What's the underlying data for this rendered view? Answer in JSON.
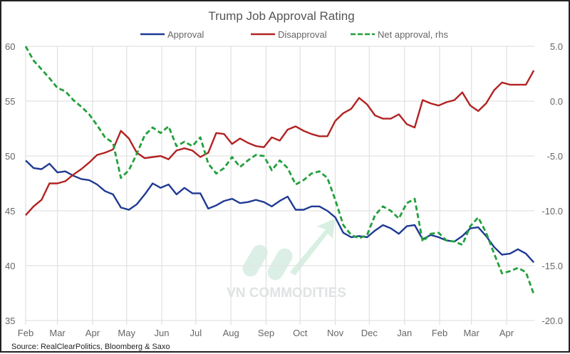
{
  "chart_data": {
    "type": "line",
    "title": "Trump Job Approval Rating",
    "source": "Source: RealClearPolitics, Bloomberg & Saxo",
    "watermark": "VN COMMODITIES",
    "legend_position": "top",
    "grid": true,
    "x_ticks": [
      {
        "date": "2025-02-01",
        "label": "Feb"
      },
      {
        "date": "2025-03-01",
        "label": "Mar"
      },
      {
        "date": "2025-04-01",
        "label": "Apr"
      },
      {
        "date": "2025-05-01",
        "label": "May"
      },
      {
        "date": "2025-06-01",
        "label": "Jun"
      },
      {
        "date": "2025-07-01",
        "label": "Jul"
      },
      {
        "date": "2025-08-01",
        "label": "Aug"
      },
      {
        "date": "2025-09-01",
        "label": "Sep"
      },
      {
        "date": "2025-10-01",
        "label": "Oct"
      },
      {
        "date": "2025-11-01",
        "label": "Nov"
      },
      {
        "date": "2025-12-01",
        "label": "Dec"
      },
      {
        "date": "2026-01-01",
        "label": "Jan"
      },
      {
        "date": "2026-02-01",
        "label": "Feb"
      },
      {
        "date": "2026-03-01",
        "label": "Mar"
      },
      {
        "date": "2026-04-01",
        "label": "Apr"
      }
    ],
    "y_left": {
      "range": [
        35,
        60
      ],
      "ticks": [
        "35",
        "40",
        "45",
        "50",
        "55",
        "60"
      ]
    },
    "y_right": {
      "range": [
        -20,
        5
      ],
      "ticks": [
        "-20.0",
        "-15.0",
        "-10.0",
        "-5.0",
        "0.0",
        "5.0"
      ]
    },
    "x": [
      "2025-02-01",
      "2025-02-08",
      "2025-02-15",
      "2025-02-22",
      "2025-03-01",
      "2025-03-08",
      "2025-03-15",
      "2025-03-22",
      "2025-03-29",
      "2025-04-05",
      "2025-04-12",
      "2025-04-19",
      "2025-04-26",
      "2025-05-03",
      "2025-05-10",
      "2025-05-17",
      "2025-05-24",
      "2025-05-31",
      "2025-06-07",
      "2025-06-14",
      "2025-06-21",
      "2025-06-28",
      "2025-07-05",
      "2025-07-12",
      "2025-07-19",
      "2025-07-26",
      "2025-08-02",
      "2025-08-09",
      "2025-08-16",
      "2025-08-23",
      "2025-08-30",
      "2025-09-06",
      "2025-09-13",
      "2025-09-20",
      "2025-09-27",
      "2025-10-04",
      "2025-10-11",
      "2025-10-18",
      "2025-10-25",
      "2025-11-01",
      "2025-11-08",
      "2025-11-15",
      "2025-11-22",
      "2025-11-29",
      "2025-12-06",
      "2025-12-13",
      "2025-12-20",
      "2025-12-27",
      "2026-01-03",
      "2026-01-10",
      "2026-01-17",
      "2026-01-24",
      "2026-01-31",
      "2026-02-07",
      "2026-02-14",
      "2026-02-21",
      "2026-02-28",
      "2026-03-07",
      "2026-03-14",
      "2026-03-21",
      "2026-03-28",
      "2026-04-04",
      "2026-04-11",
      "2026-04-18",
      "2026-04-25"
    ],
    "series": [
      {
        "name": "Approval",
        "axis": "left",
        "color": "#1f3a93",
        "dash": false,
        "values": [
          49.6,
          48.9,
          48.8,
          49.3,
          48.5,
          48.6,
          48.2,
          47.9,
          47.8,
          47.4,
          46.8,
          46.5,
          45.3,
          45.1,
          45.6,
          46.5,
          47.5,
          47.1,
          47.4,
          46.5,
          47.1,
          46.6,
          46.6,
          45.2,
          45.5,
          45.9,
          46.1,
          45.7,
          45.8,
          46.0,
          45.8,
          45.4,
          45.9,
          46.3,
          45.1,
          45.1,
          45.4,
          45.4,
          45.0,
          44.4,
          43.0,
          42.6,
          42.7,
          42.6,
          43.2,
          43.7,
          43.4,
          42.9,
          43.6,
          43.7,
          42.4,
          42.8,
          42.6,
          42.3,
          42.2,
          42.7,
          43.4,
          43.5,
          42.7,
          41.7,
          41.0,
          41.1,
          41.5,
          41.1,
          40.3
        ]
      },
      {
        "name": "Disapproval",
        "axis": "left",
        "color": "#b22222",
        "dash": false,
        "values": [
          44.6,
          45.4,
          46.0,
          47.5,
          47.5,
          47.7,
          48.3,
          48.8,
          49.4,
          50.1,
          50.3,
          50.6,
          52.3,
          51.6,
          50.3,
          49.8,
          49.9,
          50.0,
          49.7,
          50.5,
          50.7,
          50.5,
          49.9,
          50.3,
          52.1,
          52.0,
          51.1,
          51.6,
          51.2,
          50.9,
          50.8,
          51.7,
          51.4,
          52.4,
          52.7,
          52.3,
          52.0,
          51.8,
          51.8,
          53.2,
          53.9,
          54.3,
          55.3,
          54.7,
          53.7,
          53.4,
          53.4,
          53.8,
          52.9,
          52.6,
          55.1,
          54.8,
          54.6,
          54.9,
          55.1,
          55.8,
          54.6,
          54.1,
          54.8,
          56.0,
          56.7,
          56.5,
          56.5,
          56.5,
          57.8
        ]
      },
      {
        "name": "Net approval, rhs",
        "axis": "right",
        "color": "#22a03c",
        "dash": true,
        "values": [
          5.0,
          3.7,
          2.9,
          2.1,
          1.2,
          0.9,
          0.1,
          -0.5,
          -1.2,
          -2.2,
          -3.3,
          -3.8,
          -7.0,
          -6.3,
          -4.8,
          -3.1,
          -2.4,
          -2.9,
          -2.3,
          -4.1,
          -3.7,
          -4.1,
          -3.3,
          -5.7,
          -6.6,
          -6.1,
          -5.1,
          -6.0,
          -5.4,
          -4.9,
          -5.0,
          -6.3,
          -5.4,
          -6.1,
          -7.6,
          -7.2,
          -6.6,
          -6.4,
          -7.0,
          -9.0,
          -11.3,
          -12.2,
          -12.5,
          -12.2,
          -10.4,
          -9.6,
          -10.0,
          -10.7,
          -9.3,
          -8.9,
          -12.8,
          -12.1,
          -12.0,
          -12.7,
          -12.8,
          -13.1,
          -11.4,
          -10.6,
          -12.0,
          -13.9,
          -15.7,
          -15.5,
          -15.2,
          -15.6,
          -17.6
        ]
      }
    ]
  }
}
